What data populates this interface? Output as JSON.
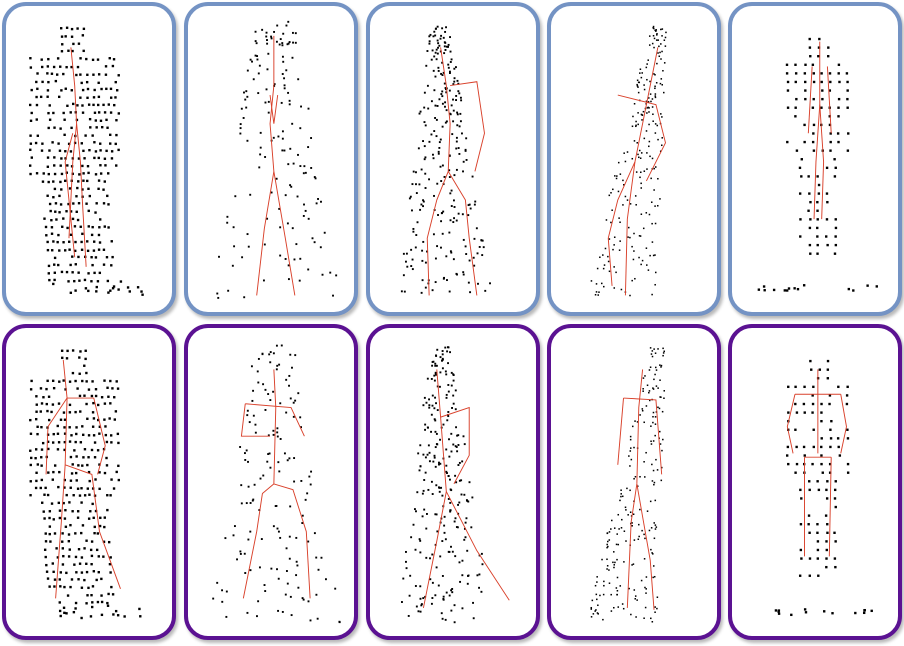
{
  "figure": {
    "rows": [
      {
        "id": "top",
        "frame_color": "#7493c4",
        "skeleton_color": "#d9412b",
        "point_color": "#000000"
      },
      {
        "id": "bottom",
        "frame_color": "#5b1292",
        "skeleton_color": "#d9412b",
        "point_color": "#000000"
      }
    ],
    "panel_count_per_row": 5
  }
}
